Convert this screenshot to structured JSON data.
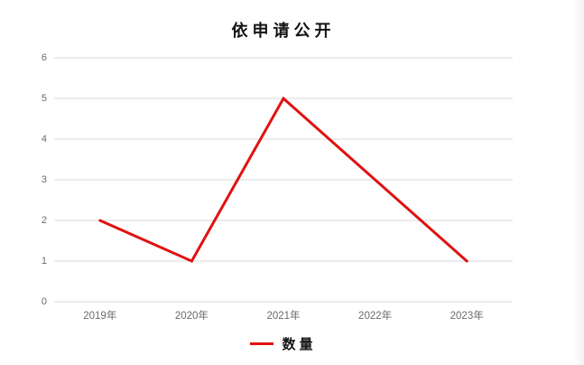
{
  "chart_data": {
    "type": "line",
    "title": "依申请公开",
    "categories": [
      "2019年",
      "2020年",
      "2021年",
      "2022年",
      "2023年"
    ],
    "series": [
      {
        "name": "数量",
        "values": [
          2,
          1,
          5,
          3,
          1
        ]
      }
    ],
    "xlabel": "",
    "ylabel": "",
    "ylim": [
      0,
      6
    ],
    "yticks": [
      0,
      1,
      2,
      3,
      4,
      5,
      6
    ],
    "grid": "horizontal",
    "legend_position": "bottom",
    "colors": {
      "line": "#e01111",
      "gridline": "#d9d9d9",
      "axis_label": "#6b6b6b",
      "title_text": "#141414",
      "background": "#ffffff"
    }
  }
}
